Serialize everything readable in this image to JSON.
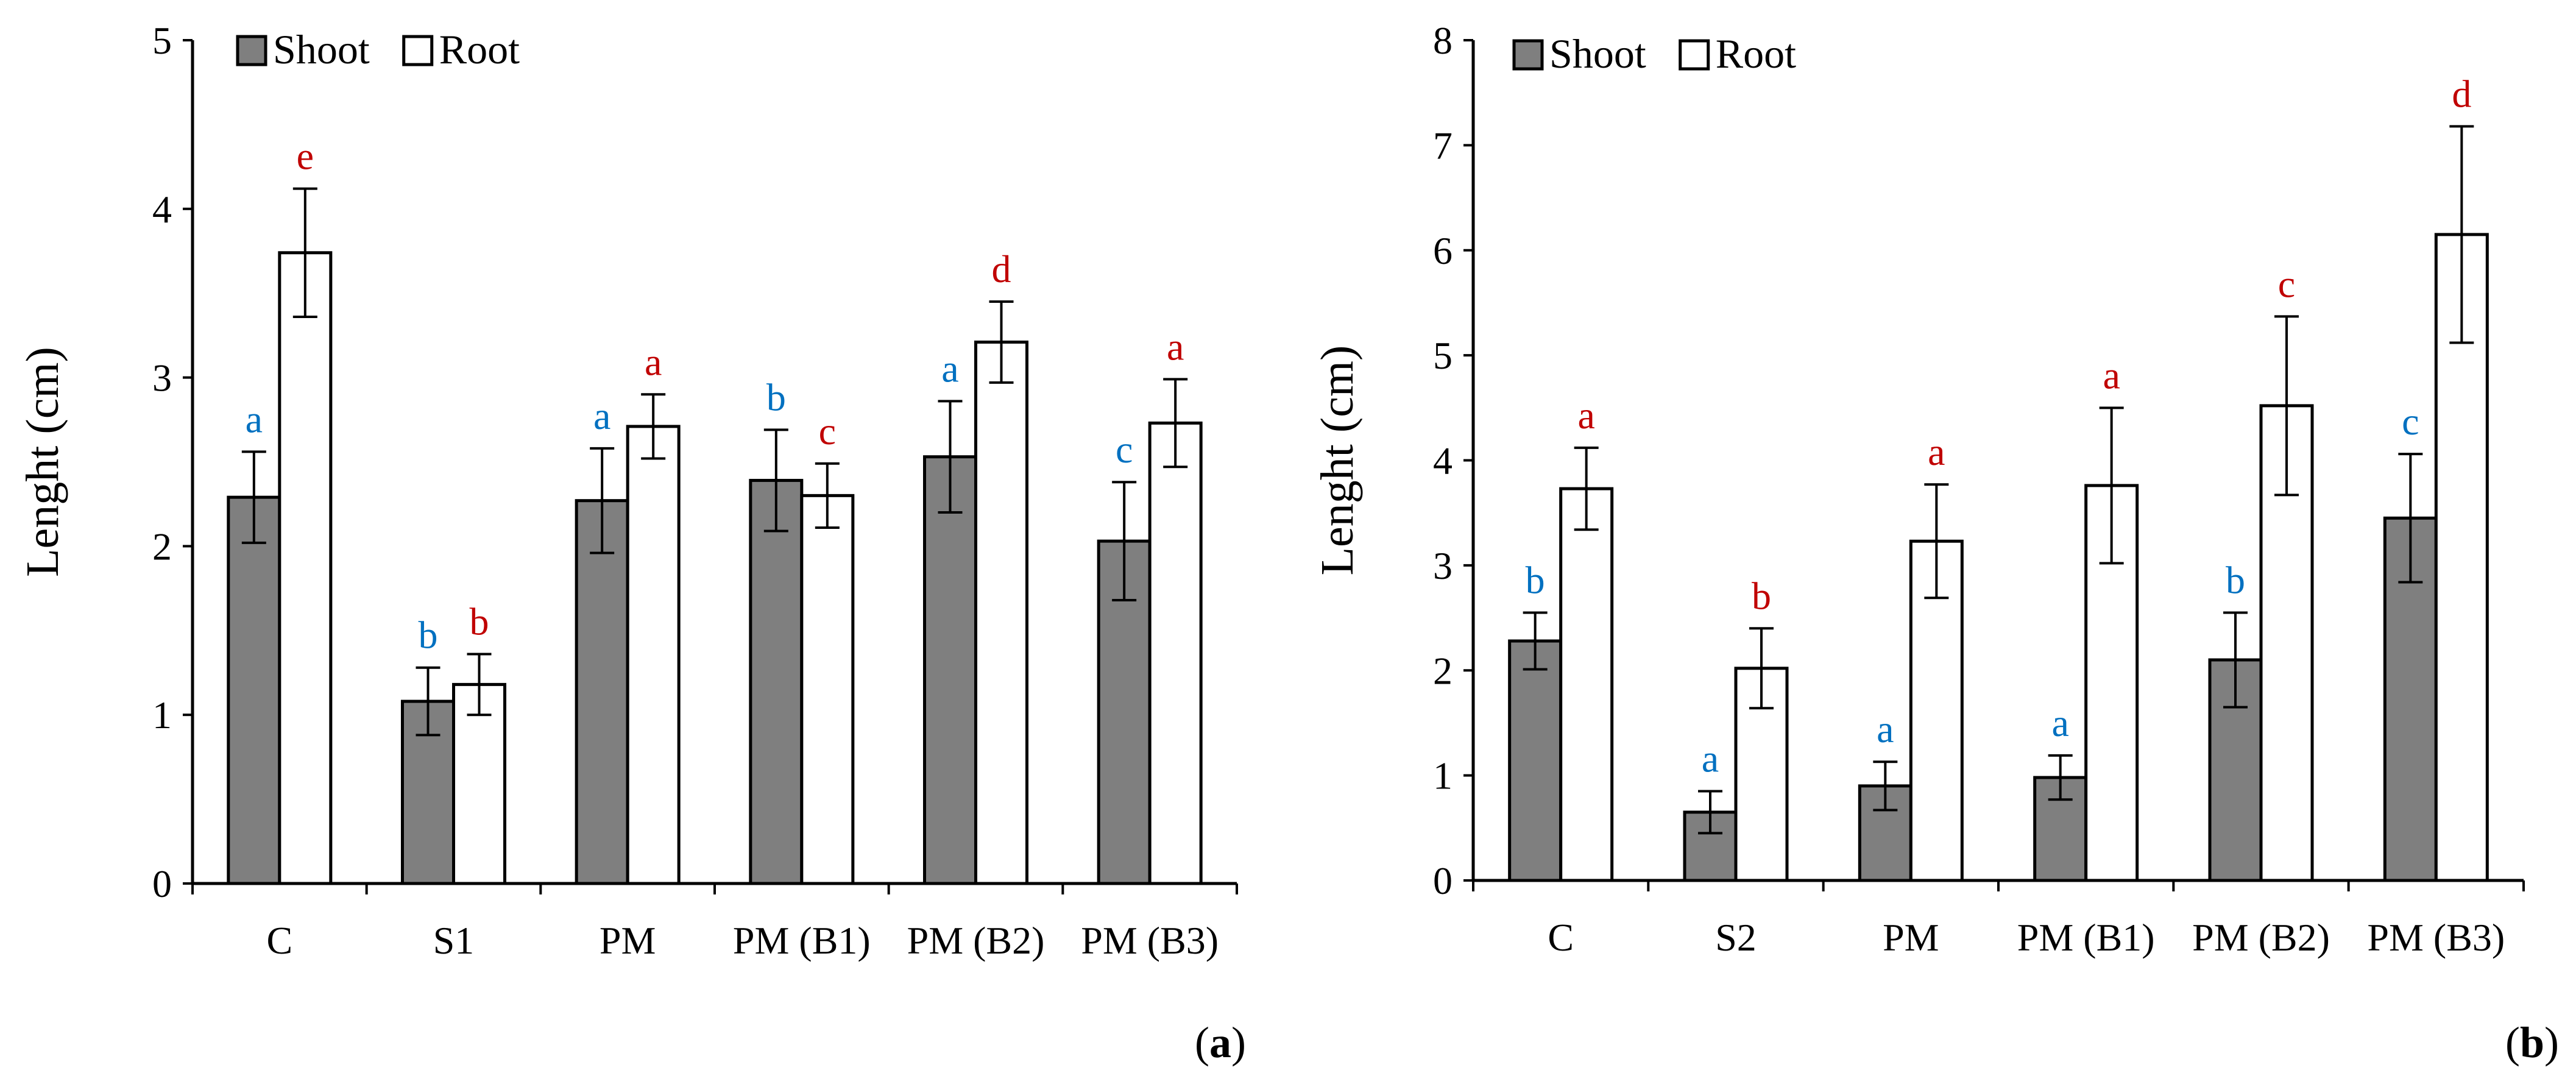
{
  "colors": {
    "shoot_fill": "#7f7f7f",
    "root_fill": "#ffffff",
    "shoot_letter": "#0070c0",
    "root_letter": "#c00000",
    "axis": "#000000"
  },
  "chart_data": [
    {
      "type": "bar",
      "panel_label_prefix": "(",
      "panel_label": "a",
      "panel_label_suffix": ")",
      "ylabel": "Lenght (cm)",
      "xlabel": "",
      "ylim": [
        0,
        5
      ],
      "yticks": [
        0,
        1,
        2,
        3,
        4,
        5
      ],
      "grid": false,
      "legend_position": "top-left",
      "categories": [
        "C",
        "S1",
        "PM",
        "PM (B1)",
        "PM (B2)",
        "PM (B3)"
      ],
      "series": [
        {
          "name": "Shoot",
          "fill": "#7f7f7f",
          "letter_color": "#0070c0",
          "values": [
            2.29,
            1.08,
            2.27,
            2.39,
            2.53,
            2.03
          ],
          "errors": [
            0.27,
            0.2,
            0.31,
            0.3,
            0.33,
            0.35
          ],
          "letters": [
            "a",
            "b",
            "a",
            "b",
            "a",
            "c"
          ]
        },
        {
          "name": "Root",
          "fill": "#ffffff",
          "letter_color": "#c00000",
          "values": [
            3.74,
            1.18,
            2.71,
            2.3,
            3.21,
            2.73
          ],
          "errors": [
            0.38,
            0.18,
            0.19,
            0.19,
            0.24,
            0.26
          ],
          "letters": [
            "e",
            "b",
            "a",
            "c",
            "d",
            "a"
          ]
        }
      ]
    },
    {
      "type": "bar",
      "panel_label_prefix": "(",
      "panel_label": "b",
      "panel_label_suffix": ")",
      "ylabel": "Lenght (cm)",
      "xlabel": "",
      "ylim": [
        0,
        8
      ],
      "yticks": [
        0,
        1,
        2,
        3,
        4,
        5,
        6,
        7,
        8
      ],
      "grid": false,
      "legend_position": "top-left",
      "categories": [
        "C",
        "S2",
        "PM",
        "PM (B1)",
        "PM (B2)",
        "PM (B3)"
      ],
      "series": [
        {
          "name": "Shoot",
          "fill": "#7f7f7f",
          "letter_color": "#0070c0",
          "values": [
            2.28,
            0.65,
            0.9,
            0.98,
            2.1,
            3.45
          ],
          "errors": [
            0.27,
            0.2,
            0.23,
            0.21,
            0.45,
            0.61
          ],
          "letters": [
            "b",
            "a",
            "a",
            "a",
            "b",
            "c"
          ]
        },
        {
          "name": "Root",
          "fill": "#ffffff",
          "letter_color": "#c00000",
          "values": [
            3.73,
            2.02,
            3.23,
            3.76,
            4.52,
            6.15
          ],
          "errors": [
            0.39,
            0.38,
            0.54,
            0.74,
            0.85,
            1.03
          ],
          "letters": [
            "a",
            "b",
            "a",
            "a",
            "c",
            "d"
          ]
        }
      ]
    }
  ]
}
